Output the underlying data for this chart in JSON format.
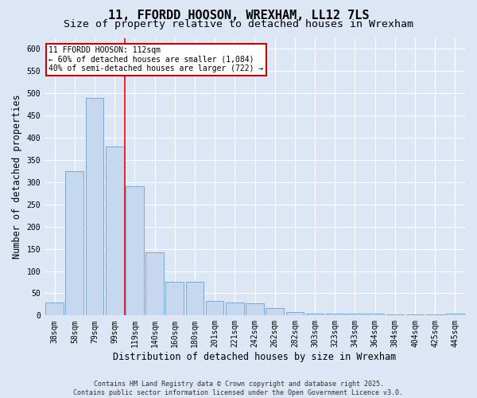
{
  "title": "11, FFORDD HOOSON, WREXHAM, LL12 7LS",
  "subtitle": "Size of property relative to detached houses in Wrexham",
  "xlabel": "Distribution of detached houses by size in Wrexham",
  "ylabel": "Number of detached properties",
  "categories": [
    "38sqm",
    "58sqm",
    "79sqm",
    "99sqm",
    "119sqm",
    "140sqm",
    "160sqm",
    "180sqm",
    "201sqm",
    "221sqm",
    "242sqm",
    "262sqm",
    "282sqm",
    "303sqm",
    "323sqm",
    "343sqm",
    "364sqm",
    "384sqm",
    "404sqm",
    "425sqm",
    "445sqm"
  ],
  "values": [
    30,
    325,
    490,
    380,
    290,
    143,
    75,
    75,
    32,
    30,
    28,
    16,
    8,
    5,
    5,
    4,
    4,
    3,
    3,
    2,
    5
  ],
  "bar_color": "#c5d8f0",
  "bar_edge_color": "#6fa0c8",
  "annotation_text": "11 FFORDD HOOSON: 112sqm\n← 60% of detached houses are smaller (1,084)\n40% of semi-detached houses are larger (722) →",
  "annotation_box_color": "#ffffff",
  "annotation_box_edge": "#cc0000",
  "redline_x": 3.5,
  "ylim": [
    0,
    625
  ],
  "yticks": [
    0,
    50,
    100,
    150,
    200,
    250,
    300,
    350,
    400,
    450,
    500,
    550,
    600
  ],
  "plot_bg_color": "#dce6f5",
  "fig_bg_color": "#dce6f5",
  "grid_color": "#ffffff",
  "footer": "Contains HM Land Registry data © Crown copyright and database right 2025.\nContains public sector information licensed under the Open Government Licence v3.0.",
  "title_fontsize": 11,
  "subtitle_fontsize": 9.5,
  "xlabel_fontsize": 8.5,
  "ylabel_fontsize": 8.5,
  "tick_fontsize": 7,
  "annotation_fontsize": 7,
  "footer_fontsize": 6
}
